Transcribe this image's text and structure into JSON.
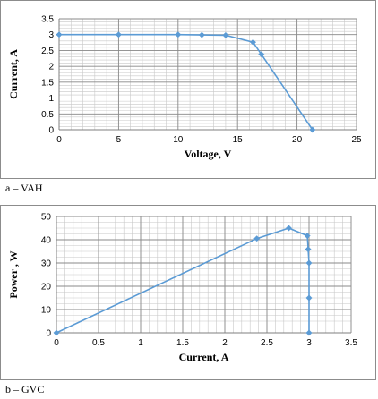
{
  "chart_data": [
    {
      "type": "line",
      "title": "",
      "xlabel": "Voltage, V",
      "ylabel": "Current, A",
      "xlim": [
        0,
        25
      ],
      "ylim": [
        0,
        3.5
      ],
      "xticks": [
        "0",
        "5",
        "10",
        "15",
        "20",
        "25"
      ],
      "yticks": [
        "0",
        "0.5",
        "1",
        "1.5",
        "2",
        "2.5",
        "3",
        "3.5"
      ],
      "grid": true,
      "caption": "a – VAH",
      "color": "#5b9bd5",
      "series": [
        {
          "x": [
            0,
            5,
            10,
            12,
            14,
            16.3,
            17,
            21.3
          ],
          "y": [
            3.0,
            3.0,
            3.0,
            2.99,
            2.98,
            2.76,
            2.38,
            0
          ]
        }
      ]
    },
    {
      "type": "line",
      "title": "",
      "xlabel": "Current, A",
      "ylabel": "Power , W",
      "xlim": [
        0,
        3.5
      ],
      "ylim": [
        0,
        50
      ],
      "xticks": [
        "0",
        "0.5",
        "1",
        "1.5",
        "2",
        "2.5",
        "3",
        "3.5"
      ],
      "yticks": [
        "0",
        "10",
        "20",
        "30",
        "40",
        "50"
      ],
      "grid": true,
      "caption": "b – GVC",
      "color": "#5b9bd5",
      "series": [
        {
          "x": [
            0,
            2.38,
            2.76,
            2.98,
            2.99,
            3.0,
            3.0,
            3.0
          ],
          "y": [
            0,
            40.5,
            45,
            41.7,
            35.9,
            30,
            15,
            0
          ]
        }
      ]
    }
  ]
}
